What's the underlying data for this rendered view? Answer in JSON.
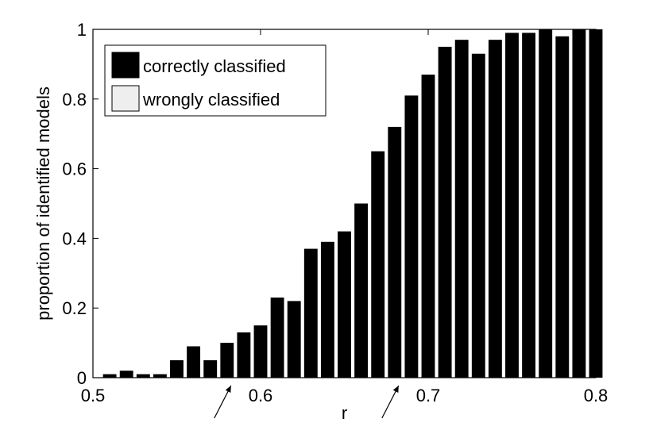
{
  "chart_data": {
    "type": "bar",
    "xlabel": "r",
    "ylabel": "proportion of identified models",
    "xlim": [
      0.5,
      0.8
    ],
    "ylim": [
      0,
      1
    ],
    "x_ticks": [
      "0.5",
      "0.6",
      "0.7",
      "0.8"
    ],
    "y_ticks": [
      "0",
      "0.2",
      "0.4",
      "0.6",
      "0.8",
      "1"
    ],
    "grid": false,
    "legend_position": "top-left",
    "series": [
      {
        "name": "correctly classified",
        "color": "#000000",
        "x": [
          0.51,
          0.52,
          0.53,
          0.54,
          0.55,
          0.56,
          0.57,
          0.58,
          0.59,
          0.6,
          0.61,
          0.62,
          0.63,
          0.64,
          0.65,
          0.66,
          0.67,
          0.68,
          0.69,
          0.7,
          0.71,
          0.72,
          0.73,
          0.74,
          0.75,
          0.76,
          0.77,
          0.78,
          0.79,
          0.8
        ],
        "values": [
          0.01,
          0.02,
          0.01,
          0.01,
          0.05,
          0.09,
          0.05,
          0.1,
          0.13,
          0.15,
          0.23,
          0.22,
          0.37,
          0.39,
          0.42,
          0.5,
          0.65,
          0.72,
          0.81,
          0.87,
          0.95,
          0.97,
          0.93,
          0.97,
          0.99,
          0.99,
          1.0,
          0.98,
          1.0,
          1.0
        ]
      },
      {
        "name": "wrongly classified",
        "color": "#eeeeee",
        "x": [],
        "values": []
      }
    ],
    "annotations": [
      {
        "type": "arrow",
        "x": 0.58
      },
      {
        "type": "arrow",
        "x": 0.68
      }
    ]
  }
}
